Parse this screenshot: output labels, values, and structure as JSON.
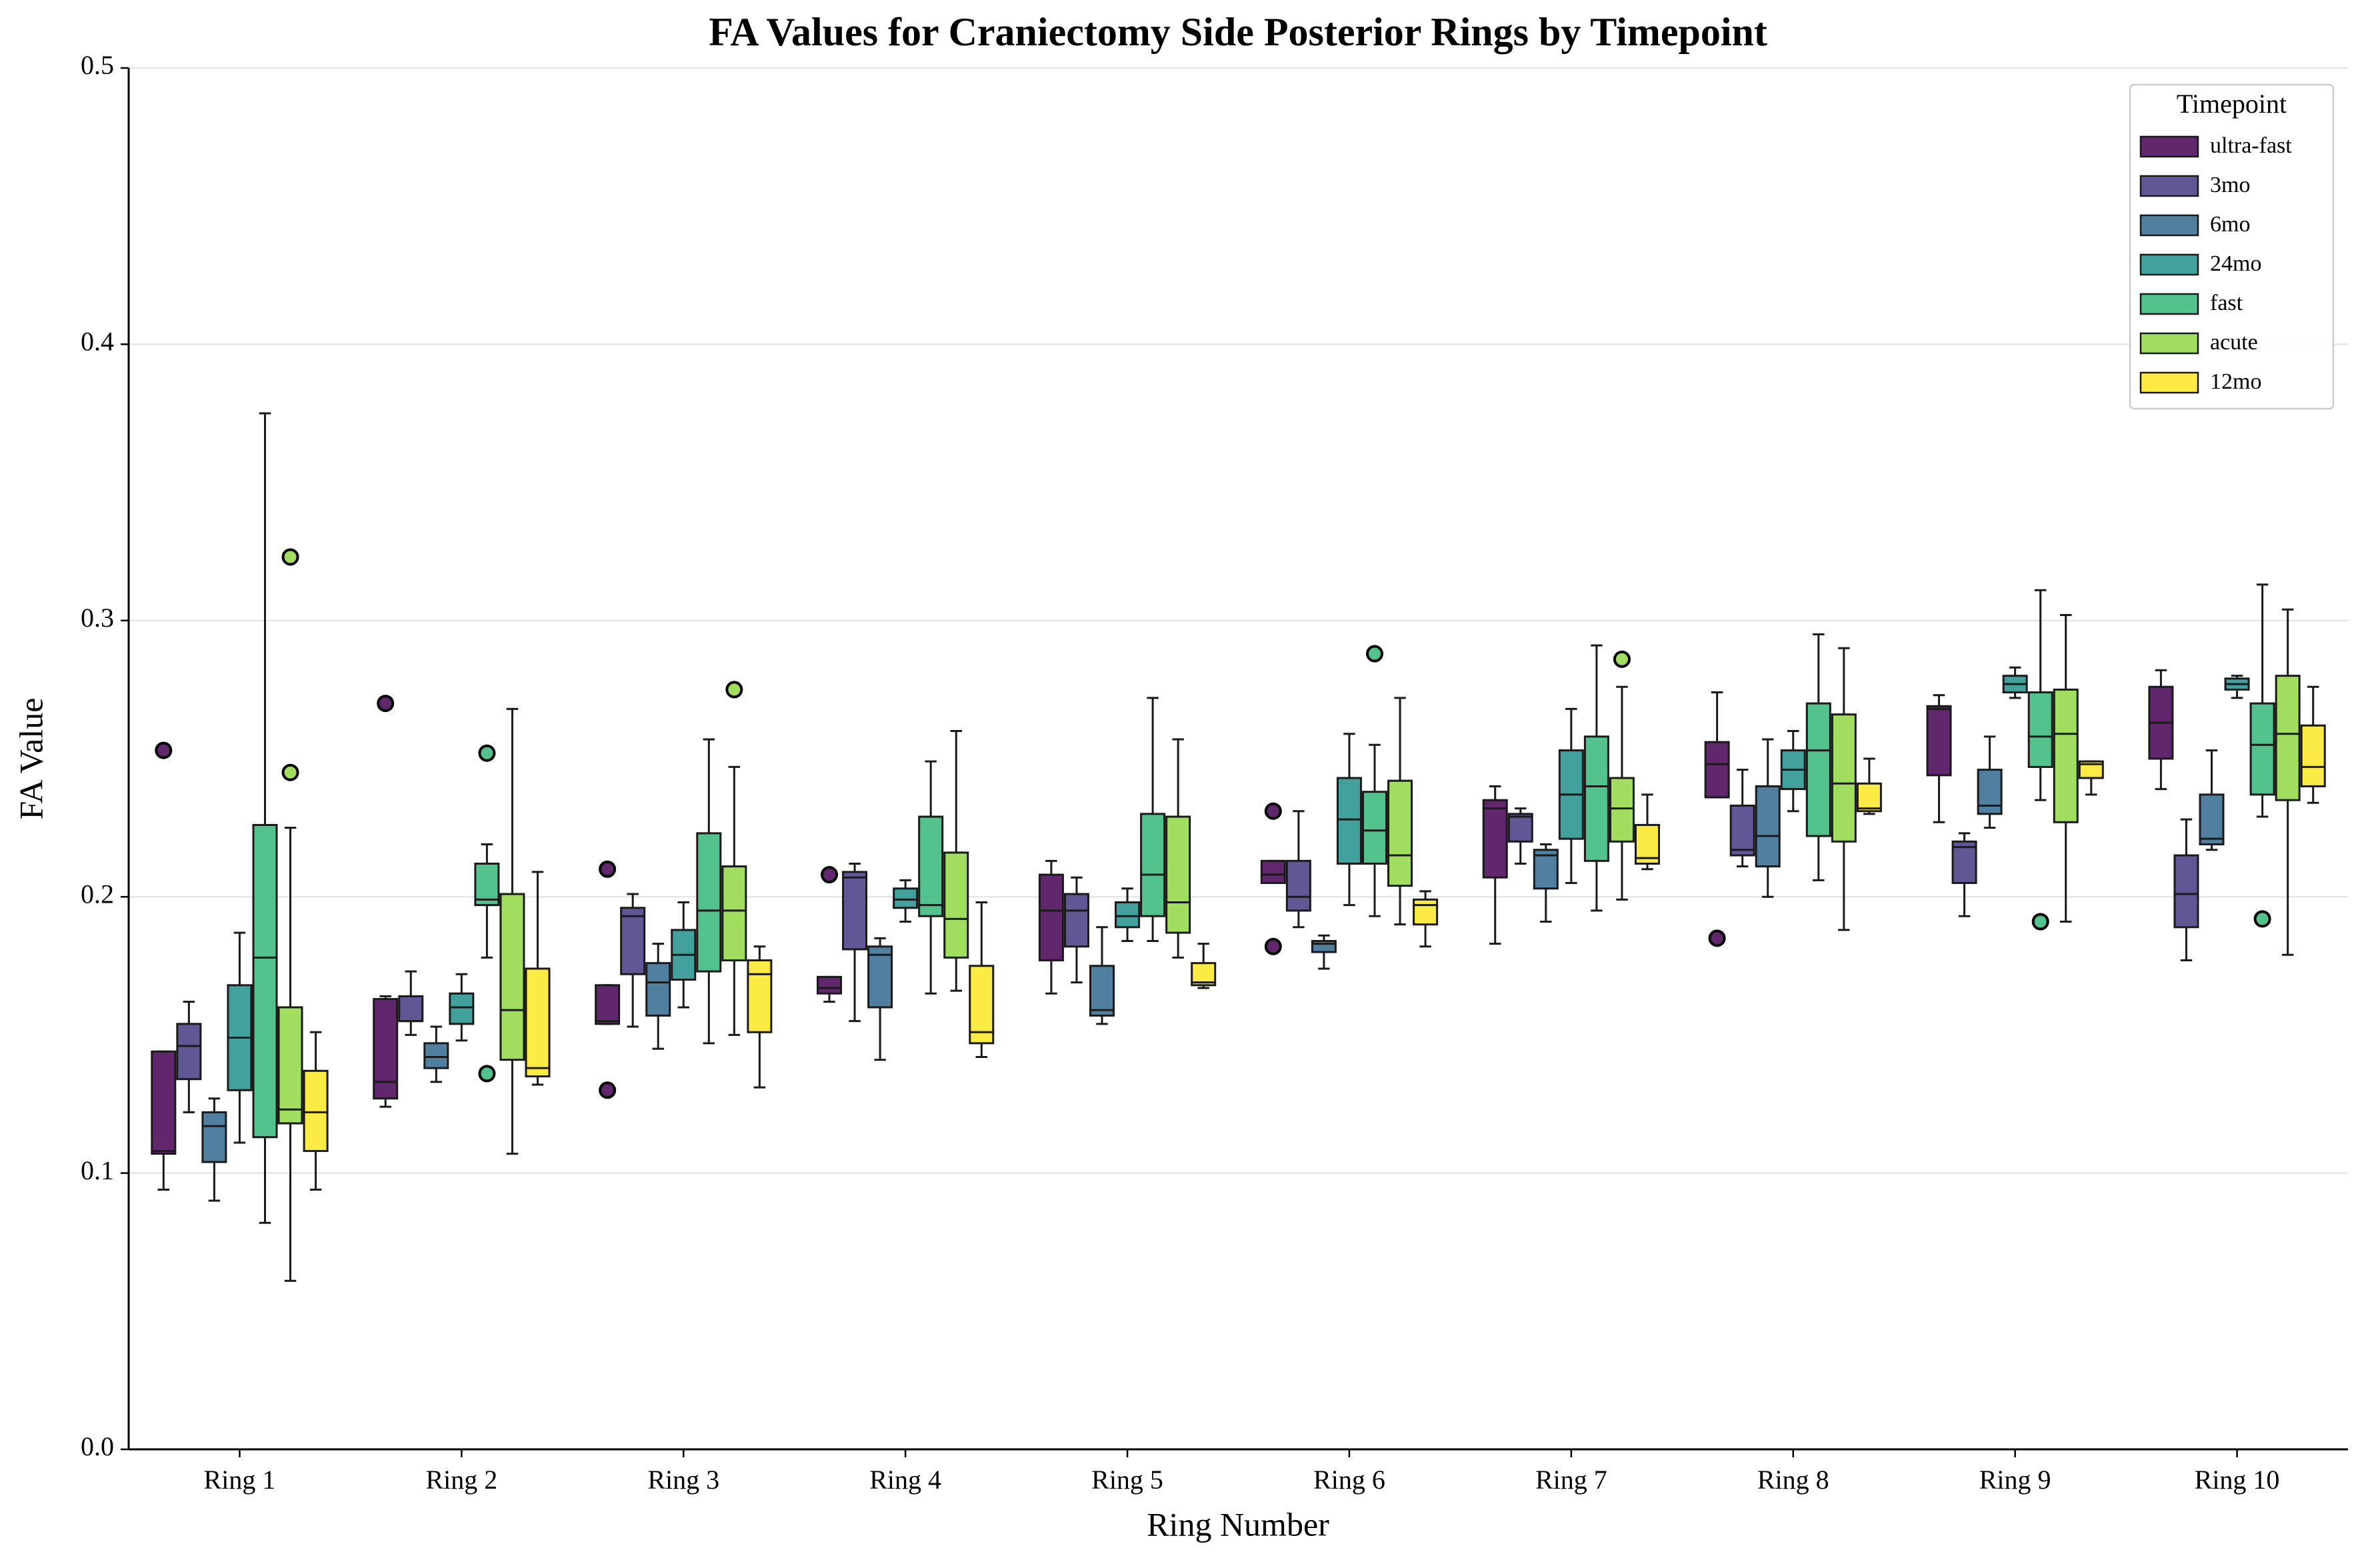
{
  "chart_data": {
    "type": "box",
    "title": "FA Values for Craniectomy Side Posterior Rings by Timepoint",
    "x_label": "Ring Number",
    "y_label": "FA Value",
    "categories": [
      "Ring 1",
      "Ring 2",
      "Ring 3",
      "Ring 4",
      "Ring 5",
      "Ring 6",
      "Ring 7",
      "Ring 8",
      "Ring 9",
      "Ring 10"
    ],
    "ylim": [
      0,
      0.5
    ],
    "yticks": [
      {
        "value": 0,
        "label": "0.0"
      },
      0.1,
      0.2,
      0.3,
      0.4,
      0.5
    ],
    "grid": true,
    "legend_title": "Timepoint",
    "legend_position": "upper right",
    "series": [
      {
        "name": "ultra-fast",
        "color": "#440154",
        "boxes": [
          {
            "min": 0.094,
            "q1": 0.107,
            "median": 0.108,
            "q3": 0.144,
            "max": 0.144
          },
          {
            "min": 0.124,
            "q1": 0.127,
            "median": 0.133,
            "q3": 0.163,
            "max": 0.164
          },
          {
            "min": 0.154,
            "q1": 0.154,
            "median": 0.155,
            "q3": 0.168,
            "max": 0.168
          },
          {
            "min": 0.162,
            "q1": 0.165,
            "median": 0.167,
            "q3": 0.171,
            "max": 0.171
          },
          {
            "min": 0.165,
            "q1": 0.177,
            "median": 0.195,
            "q3": 0.208,
            "max": 0.213
          },
          {
            "min": 0.205,
            "q1": 0.205,
            "median": 0.208,
            "q3": 0.213,
            "max": 0.213
          },
          {
            "min": 0.183,
            "q1": 0.207,
            "median": 0.232,
            "q3": 0.235,
            "max": 0.24
          },
          {
            "min": 0.236,
            "q1": 0.236,
            "median": 0.248,
            "q3": 0.256,
            "max": 0.274
          },
          {
            "min": 0.227,
            "q1": 0.244,
            "median": 0.268,
            "q3": 0.269,
            "max": 0.273
          },
          {
            "min": 0.239,
            "q1": 0.25,
            "median": 0.263,
            "q3": 0.276,
            "max": 0.282
          }
        ],
        "outliers": [
          [
            0.253
          ],
          [
            0.27
          ],
          [
            0.21,
            0.13
          ],
          [
            0.208
          ],
          [],
          [
            0.231,
            0.182
          ],
          [],
          [
            0.185
          ],
          [],
          []
        ]
      },
      {
        "name": "3mo",
        "color": "#443983",
        "boxes": [
          {
            "min": 0.122,
            "q1": 0.134,
            "median": 0.146,
            "q3": 0.154,
            "max": 0.162
          },
          {
            "min": 0.15,
            "q1": 0.155,
            "median": 0.155,
            "q3": 0.164,
            "max": 0.173
          },
          {
            "min": 0.153,
            "q1": 0.172,
            "median": 0.193,
            "q3": 0.196,
            "max": 0.201
          },
          {
            "min": 0.155,
            "q1": 0.181,
            "median": 0.207,
            "q3": 0.209,
            "max": 0.212
          },
          {
            "min": 0.169,
            "q1": 0.182,
            "median": 0.195,
            "q3": 0.201,
            "max": 0.207
          },
          {
            "min": 0.189,
            "q1": 0.195,
            "median": 0.2,
            "q3": 0.213,
            "max": 0.231
          },
          {
            "min": 0.212,
            "q1": 0.22,
            "median": 0.229,
            "q3": 0.23,
            "max": 0.232
          },
          {
            "min": 0.211,
            "q1": 0.215,
            "median": 0.217,
            "q3": 0.233,
            "max": 0.246
          },
          {
            "min": 0.193,
            "q1": 0.205,
            "median": 0.218,
            "q3": 0.22,
            "max": 0.223
          },
          {
            "min": 0.177,
            "q1": 0.189,
            "median": 0.201,
            "q3": 0.215,
            "max": 0.228
          }
        ],
        "outliers": [
          [],
          [],
          [],
          [],
          [],
          [],
          [],
          [],
          [],
          []
        ]
      },
      {
        "name": "6mo",
        "color": "#31688e",
        "boxes": [
          {
            "min": 0.09,
            "q1": 0.104,
            "median": 0.117,
            "q3": 0.122,
            "max": 0.127
          },
          {
            "min": 0.133,
            "q1": 0.138,
            "median": 0.142,
            "q3": 0.147,
            "max": 0.153
          },
          {
            "min": 0.145,
            "q1": 0.157,
            "median": 0.169,
            "q3": 0.176,
            "max": 0.183
          },
          {
            "min": 0.141,
            "q1": 0.16,
            "median": 0.179,
            "q3": 0.182,
            "max": 0.185
          },
          {
            "min": 0.154,
            "q1": 0.157,
            "median": 0.159,
            "q3": 0.175,
            "max": 0.189
          },
          {
            "min": 0.174,
            "q1": 0.18,
            "median": 0.183,
            "q3": 0.184,
            "max": 0.186
          },
          {
            "min": 0.191,
            "q1": 0.203,
            "median": 0.215,
            "q3": 0.217,
            "max": 0.219
          },
          {
            "min": 0.2,
            "q1": 0.211,
            "median": 0.222,
            "q3": 0.24,
            "max": 0.257
          },
          {
            "min": 0.225,
            "q1": 0.23,
            "median": 0.233,
            "q3": 0.246,
            "max": 0.258
          },
          {
            "min": 0.217,
            "q1": 0.219,
            "median": 0.221,
            "q3": 0.237,
            "max": 0.253
          }
        ],
        "outliers": [
          [],
          [],
          [],
          [],
          [],
          [],
          [],
          [],
          [],
          []
        ]
      },
      {
        "name": "24mo",
        "color": "#21918c",
        "boxes": [
          {
            "min": 0.111,
            "q1": 0.13,
            "median": 0.149,
            "q3": 0.168,
            "max": 0.187
          },
          {
            "min": 0.148,
            "q1": 0.154,
            "median": 0.16,
            "q3": 0.165,
            "max": 0.172
          },
          {
            "min": 0.16,
            "q1": 0.17,
            "median": 0.179,
            "q3": 0.188,
            "max": 0.198
          },
          {
            "min": 0.191,
            "q1": 0.196,
            "median": 0.199,
            "q3": 0.203,
            "max": 0.206
          },
          {
            "min": 0.184,
            "q1": 0.189,
            "median": 0.193,
            "q3": 0.198,
            "max": 0.203
          },
          {
            "min": 0.197,
            "q1": 0.212,
            "median": 0.228,
            "q3": 0.243,
            "max": 0.259
          },
          {
            "min": 0.205,
            "q1": 0.221,
            "median": 0.237,
            "q3": 0.253,
            "max": 0.268
          },
          {
            "min": 0.231,
            "q1": 0.239,
            "median": 0.246,
            "q3": 0.253,
            "max": 0.26
          },
          {
            "min": 0.272,
            "q1": 0.274,
            "median": 0.277,
            "q3": 0.28,
            "max": 0.283
          },
          {
            "min": 0.272,
            "q1": 0.275,
            "median": 0.277,
            "q3": 0.279,
            "max": 0.28
          }
        ],
        "outliers": [
          [],
          [],
          [],
          [],
          [],
          [],
          [],
          [],
          [],
          []
        ]
      },
      {
        "name": "fast",
        "color": "#35b779",
        "boxes": [
          {
            "min": 0.082,
            "q1": 0.113,
            "median": 0.178,
            "q3": 0.226,
            "max": 0.375
          },
          {
            "min": 0.178,
            "q1": 0.197,
            "median": 0.199,
            "q3": 0.212,
            "max": 0.219
          },
          {
            "min": 0.147,
            "q1": 0.173,
            "median": 0.195,
            "q3": 0.223,
            "max": 0.257
          },
          {
            "min": 0.165,
            "q1": 0.193,
            "median": 0.197,
            "q3": 0.229,
            "max": 0.249
          },
          {
            "min": 0.184,
            "q1": 0.193,
            "median": 0.208,
            "q3": 0.23,
            "max": 0.272
          },
          {
            "min": 0.193,
            "q1": 0.212,
            "median": 0.224,
            "q3": 0.238,
            "max": 0.255
          },
          {
            "min": 0.195,
            "q1": 0.213,
            "median": 0.24,
            "q3": 0.258,
            "max": 0.291
          },
          {
            "min": 0.206,
            "q1": 0.222,
            "median": 0.253,
            "q3": 0.27,
            "max": 0.295
          },
          {
            "min": 0.235,
            "q1": 0.247,
            "median": 0.258,
            "q3": 0.274,
            "max": 0.311
          },
          {
            "min": 0.229,
            "q1": 0.237,
            "median": 0.255,
            "q3": 0.27,
            "max": 0.313
          }
        ],
        "outliers": [
          [],
          [
            0.252,
            0.136
          ],
          [],
          [],
          [],
          [
            0.288
          ],
          [],
          [],
          [
            0.191
          ],
          [
            0.192
          ]
        ]
      },
      {
        "name": "acute",
        "color": "#90d743",
        "boxes": [
          {
            "min": 0.061,
            "q1": 0.118,
            "median": 0.123,
            "q3": 0.16,
            "max": 0.225
          },
          {
            "min": 0.107,
            "q1": 0.141,
            "median": 0.159,
            "q3": 0.201,
            "max": 0.268
          },
          {
            "min": 0.15,
            "q1": 0.177,
            "median": 0.195,
            "q3": 0.211,
            "max": 0.247
          },
          {
            "min": 0.166,
            "q1": 0.178,
            "median": 0.192,
            "q3": 0.216,
            "max": 0.26
          },
          {
            "min": 0.178,
            "q1": 0.187,
            "median": 0.198,
            "q3": 0.229,
            "max": 0.257
          },
          {
            "min": 0.19,
            "q1": 0.204,
            "median": 0.215,
            "q3": 0.242,
            "max": 0.272
          },
          {
            "min": 0.199,
            "q1": 0.22,
            "median": 0.232,
            "q3": 0.243,
            "max": 0.276
          },
          {
            "min": 0.188,
            "q1": 0.22,
            "median": 0.241,
            "q3": 0.266,
            "max": 0.29
          },
          {
            "min": 0.191,
            "q1": 0.227,
            "median": 0.259,
            "q3": 0.275,
            "max": 0.302
          },
          {
            "min": 0.179,
            "q1": 0.235,
            "median": 0.259,
            "q3": 0.28,
            "max": 0.304
          }
        ],
        "outliers": [
          [
            0.323,
            0.245
          ],
          [],
          [
            0.275
          ],
          [],
          [],
          [],
          [
            0.286
          ],
          [],
          [],
          []
        ]
      },
      {
        "name": "12mo",
        "color": "#fde725",
        "boxes": [
          {
            "min": 0.094,
            "q1": 0.108,
            "median": 0.122,
            "q3": 0.137,
            "max": 0.151
          },
          {
            "min": 0.132,
            "q1": 0.135,
            "median": 0.138,
            "q3": 0.174,
            "max": 0.209
          },
          {
            "min": 0.131,
            "q1": 0.151,
            "median": 0.172,
            "q3": 0.177,
            "max": 0.182
          },
          {
            "min": 0.142,
            "q1": 0.147,
            "median": 0.151,
            "q3": 0.175,
            "max": 0.198
          },
          {
            "min": 0.167,
            "q1": 0.168,
            "median": 0.169,
            "q3": 0.176,
            "max": 0.183
          },
          {
            "min": 0.182,
            "q1": 0.19,
            "median": 0.197,
            "q3": 0.199,
            "max": 0.202
          },
          {
            "min": 0.21,
            "q1": 0.212,
            "median": 0.214,
            "q3": 0.226,
            "max": 0.237
          },
          {
            "min": 0.23,
            "q1": 0.231,
            "median": 0.232,
            "q3": 0.241,
            "max": 0.25
          },
          {
            "min": 0.237,
            "q1": 0.243,
            "median": 0.248,
            "q3": 0.249,
            "max": 0.249
          },
          {
            "min": 0.234,
            "q1": 0.24,
            "median": 0.247,
            "q3": 0.262,
            "max": 0.276
          }
        ],
        "outliers": [
          [],
          [],
          [],
          [],
          [],
          [],
          [],
          [],
          [],
          []
        ]
      }
    ]
  }
}
